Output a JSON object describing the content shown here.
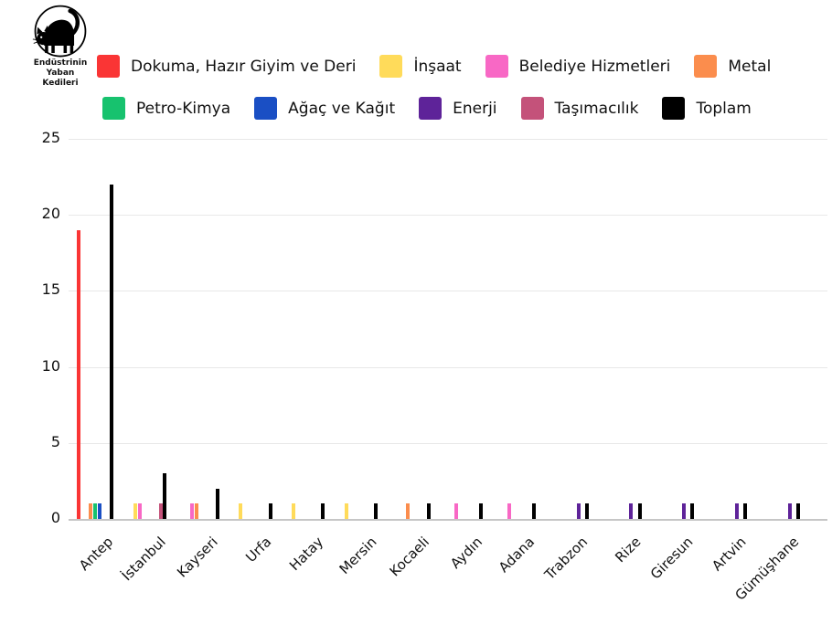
{
  "logo": {
    "org_lines": [
      "Endüstrinin",
      "Yaban",
      "Kedileri"
    ]
  },
  "chart_data": {
    "type": "bar",
    "title": "",
    "xlabel": "",
    "ylabel": "",
    "ylim": [
      0,
      25
    ],
    "yticks": [
      0,
      5,
      10,
      15,
      20,
      25
    ],
    "grid": true,
    "legend_position": "top",
    "legend_rows": [
      [
        0,
        1,
        2,
        3
      ],
      [
        4,
        5,
        6,
        7,
        8
      ]
    ],
    "categories": [
      "Antep",
      "İstanbul",
      "Kayseri",
      "Urfa",
      "Hatay",
      "Mersin",
      "Kocaeli",
      "Aydın",
      "Adana",
      "Trabzon",
      "Rize",
      "Giresun",
      "Artvin",
      "Gümüşhane"
    ],
    "series": [
      {
        "name": "Dokuma, Hazır Giyim ve Deri",
        "color": "#fa3535",
        "values": [
          19,
          0,
          0,
          0,
          0,
          0,
          0,
          0,
          0,
          0,
          0,
          0,
          0,
          0
        ]
      },
      {
        "name": "İnşaat",
        "color": "#ffdb5a",
        "values": [
          0,
          1,
          0,
          1,
          1,
          1,
          0,
          0,
          0,
          0,
          0,
          0,
          0,
          0
        ]
      },
      {
        "name": "Belediye Hizmetleri",
        "color": "#f868c5",
        "values": [
          0,
          1,
          1,
          0,
          0,
          0,
          0,
          1,
          1,
          0,
          0,
          0,
          0,
          0
        ]
      },
      {
        "name": "Metal",
        "color": "#fb8d4d",
        "values": [
          1,
          0,
          1,
          0,
          0,
          0,
          1,
          0,
          0,
          0,
          0,
          0,
          0,
          0
        ]
      },
      {
        "name": "Petro-Kimya",
        "color": "#17c26e",
        "values": [
          1,
          0,
          0,
          0,
          0,
          0,
          0,
          0,
          0,
          0,
          0,
          0,
          0,
          0
        ]
      },
      {
        "name": "Ağaç ve Kağıt",
        "color": "#1a4fc4",
        "values": [
          1,
          0,
          0,
          0,
          0,
          0,
          0,
          0,
          0,
          0,
          0,
          0,
          0,
          0
        ]
      },
      {
        "name": "Enerji",
        "color": "#5e2399",
        "values": [
          0,
          0,
          0,
          0,
          0,
          0,
          0,
          0,
          0,
          1,
          1,
          1,
          1,
          1
        ]
      },
      {
        "name": "Taşımacılık",
        "color": "#c4527a",
        "values": [
          0,
          1,
          0,
          0,
          0,
          0,
          0,
          0,
          0,
          0,
          0,
          0,
          0,
          0
        ]
      },
      {
        "name": "Toplam",
        "color": "#000000",
        "values": [
          22,
          3,
          2,
          1,
          1,
          1,
          1,
          1,
          1,
          1,
          1,
          1,
          1,
          1
        ]
      }
    ]
  }
}
